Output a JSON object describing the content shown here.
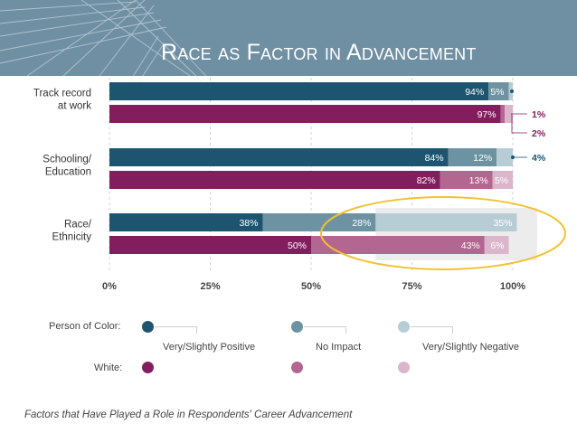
{
  "slide": {
    "title": "Race as Factor in Advancement"
  },
  "chart_data": {
    "type": "bar",
    "orientation": "horizontal",
    "stacked": true,
    "categories": [
      "Track record at work",
      "Schooling/ Education",
      "Race/ Ethnicity"
    ],
    "category_lines": [
      [
        "Track record",
        "at work"
      ],
      [
        "Schooling/",
        "Education"
      ],
      [
        "Race/",
        "Ethnicity"
      ]
    ],
    "groups": [
      "Person of Color",
      "White"
    ],
    "series": [
      {
        "name": "Very/Slightly Positive",
        "poc": [
          94,
          84,
          38
        ],
        "white": [
          97,
          82,
          50
        ]
      },
      {
        "name": "No Impact",
        "poc": [
          5,
          12,
          28
        ],
        "white": [
          1,
          13,
          43
        ]
      },
      {
        "name": "Very/Slightly Negative",
        "poc": [
          1,
          4,
          35
        ],
        "white": [
          2,
          5,
          6
        ]
      }
    ],
    "labels": {
      "poc": [
        [
          "94%",
          "5%",
          ""
        ],
        [
          "84%",
          "12%",
          ""
        ],
        [
          "38%",
          "28%",
          "35%"
        ]
      ],
      "white": [
        [
          "97%",
          "",
          ""
        ],
        [
          "82%",
          "13%",
          "5%"
        ],
        [
          "50%",
          "43%",
          "6%"
        ]
      ]
    },
    "callouts": [
      {
        "text": "1%",
        "group": "white",
        "category": 0
      },
      {
        "text": "2%",
        "group": "white",
        "category": 0
      },
      {
        "text": "4%",
        "group": "poc",
        "category": 1
      }
    ],
    "xticks": [
      "0%",
      "25%",
      "50%",
      "75%",
      "100%"
    ],
    "xlim": [
      0,
      100
    ],
    "colors": {
      "poc": [
        "#1d5570",
        "#6d93a3",
        "#b7cdd6"
      ],
      "white": [
        "#831e5e",
        "#b3668f",
        "#dbb5cb"
      ]
    },
    "highlight": "Race/Ethnicity negative impact"
  },
  "legend": {
    "rows": [
      "Person of Color:",
      "White:"
    ],
    "categories": [
      "Very/Slightly Positive",
      "No Impact",
      "Very/Slightly Negative"
    ]
  },
  "caption": "Factors that Have Played a Role in Respondents' Career Advancement",
  "theme": {
    "header": "#6f8fa3",
    "ellipse": "#f1c232",
    "grid": "#c9c9c9"
  }
}
